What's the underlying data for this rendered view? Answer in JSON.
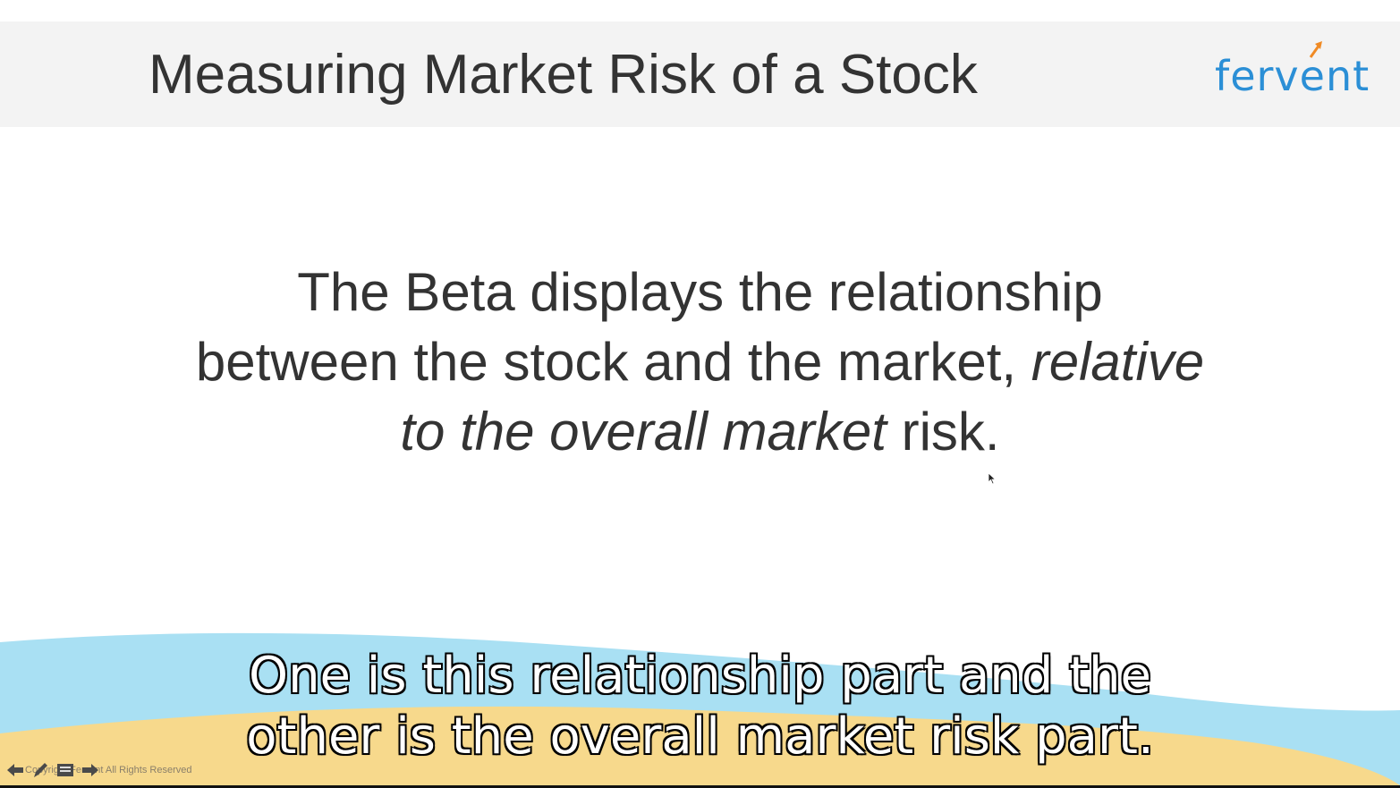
{
  "slide": {
    "title": "Measuring Market Risk of a Stock",
    "logo": {
      "text_a": "fer",
      "text_v": "v",
      "text_b": "ent"
    },
    "body": {
      "line1": "The Beta displays the relationship",
      "line2_plain": "between the stock and the market, ",
      "line2_italic": "relative",
      "line3_italic": "to the overall market",
      "line3_plain": " risk."
    },
    "copyright": "Copyright Fervent All Rights Reserved"
  },
  "player": {
    "controls": [
      "prev-icon",
      "pen-icon",
      "menu-icon",
      "next-icon"
    ]
  },
  "captions": {
    "line1": "One is this relationship part and the",
    "line2": "other is the overall market risk part."
  },
  "colors": {
    "title": "#333333",
    "logo": "#2b8fd6",
    "logo_accent": "#f08a24",
    "wave_blue": "#a9e0f3",
    "wave_sand": "#f7d98c",
    "header_bg": "#f3f3f3"
  }
}
